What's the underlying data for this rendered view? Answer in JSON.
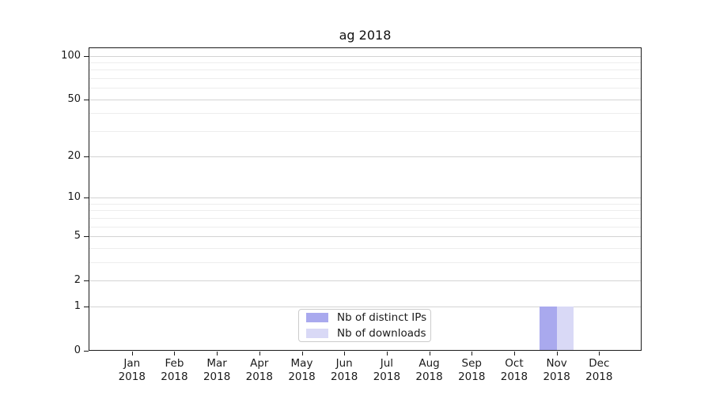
{
  "chart_data": {
    "type": "bar",
    "title": "ag 2018",
    "categories": [
      "Jan",
      "Feb",
      "Mar",
      "Apr",
      "May",
      "Jun",
      "Jul",
      "Aug",
      "Sep",
      "Oct",
      "Nov",
      "Dec"
    ],
    "category_year": "2018",
    "series": [
      {
        "name": "Nb of distinct IPs",
        "color": "#a9a9ee",
        "values": [
          0,
          0,
          0,
          0,
          0,
          0,
          0,
          0,
          0,
          0,
          1,
          0
        ]
      },
      {
        "name": "Nb of downloads",
        "color": "#d9d9f6",
        "values": [
          0,
          0,
          0,
          0,
          0,
          0,
          0,
          0,
          0,
          0,
          1,
          0
        ]
      }
    ],
    "xlabel": "",
    "ylabel": "",
    "yscale": "log1p",
    "ylim": [
      0,
      100
    ],
    "y_tick_labels": [
      0,
      1,
      2,
      5,
      10,
      20,
      50,
      100
    ],
    "y_minor_gridlines": [
      3,
      4,
      6,
      7,
      8,
      9,
      30,
      40,
      60,
      70,
      80,
      90
    ],
    "grid": true,
    "legend_position": "lower center",
    "spine_color": "#1a1a1a",
    "major_grid_color": "#d3d3d3",
    "minor_grid_color": "#ededed"
  }
}
